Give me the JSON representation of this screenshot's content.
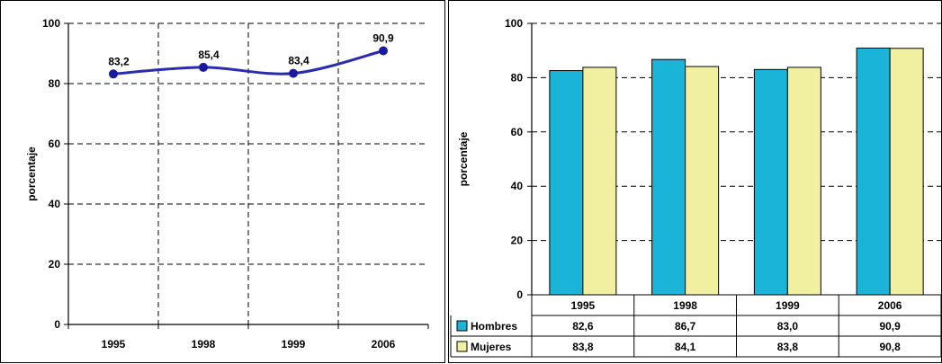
{
  "chart_data": [
    {
      "type": "line",
      "ylabel": "porcentaje",
      "xlabel": "",
      "title": "",
      "categories": [
        "1995",
        "1998",
        "1999",
        "2006"
      ],
      "values": [
        83.2,
        85.4,
        83.4,
        90.9
      ],
      "data_labels": [
        "83,2",
        "85,4",
        "83,4",
        "90,9"
      ],
      "ylim": [
        0,
        100
      ],
      "yticks": [
        "0",
        "20",
        "40",
        "60",
        "80",
        "100"
      ],
      "grid": "dashed",
      "line_color": "#2b2bb0",
      "marker_color": "#1a1a9e"
    },
    {
      "type": "bar",
      "ylabel": "porcentaje",
      "xlabel": "",
      "title": "",
      "categories": [
        "1995",
        "1998",
        "1999",
        "2006"
      ],
      "ylim": [
        0,
        100
      ],
      "yticks": [
        "0",
        "20",
        "40",
        "60",
        "80",
        "100"
      ],
      "grid": "dashed",
      "legend": "data-table-below",
      "series": [
        {
          "name": "Hombres",
          "values": [
            82.6,
            86.7,
            83.0,
            90.9
          ],
          "labels": [
            "82,6",
            "86,7",
            "83,0",
            "90,9"
          ],
          "color": "#19b4d8"
        },
        {
          "name": "Mujeres",
          "values": [
            83.8,
            84.1,
            83.8,
            90.8
          ],
          "labels": [
            "83,8",
            "84,1",
            "83,8",
            "90,8"
          ],
          "color": "#f0f0a0"
        }
      ]
    }
  ]
}
